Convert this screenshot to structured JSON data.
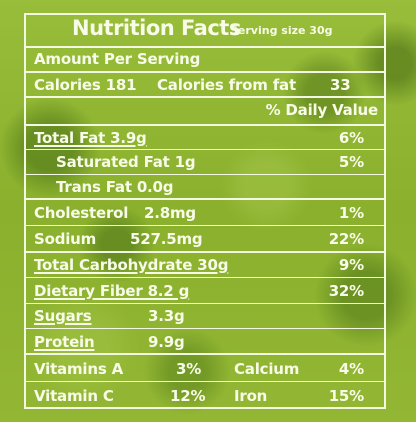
{
  "label": {
    "title": "Nutrition Facts",
    "serving": "Serving size 30g",
    "amount_per_serving": "Amount Per Serving",
    "calories_label": "Calories 181",
    "calories_from_fat_label": "Calories from fat",
    "calories_from_fat_value": "33",
    "daily_value_header": "% Daily Value"
  },
  "nutrients": {
    "total_fat": {
      "label": "Total Fat 3.9g",
      "dv": "6%"
    },
    "saturated_fat": {
      "label": "Saturated Fat 1g",
      "dv": "5%"
    },
    "trans_fat": {
      "label": "Trans Fat 0.0g"
    },
    "cholesterol": {
      "label": "Cholesterol",
      "amount": "2.8mg",
      "dv": "1%"
    },
    "sodium": {
      "label": "Sodium",
      "amount": "527.5mg",
      "dv": "22%"
    },
    "total_carbohydrate": {
      "label": "Total Carbohydrate 30g",
      "dv": "9%"
    },
    "dietary_fiber": {
      "label": "Dietary Fiber 8.2 g",
      "dv": "32%"
    },
    "sugars": {
      "label": "Sugars",
      "amount": "3.3g"
    },
    "protein": {
      "label": "Protein",
      "amount": "9.9g"
    }
  },
  "vitamins": {
    "vitamin_a": {
      "label": "Vitamins A",
      "dv": "3%"
    },
    "calcium": {
      "label": "Calcium",
      "dv": "4%"
    },
    "vitamin_c": {
      "label": "Vitamin C",
      "dv": "12%"
    },
    "iron": {
      "label": "Iron",
      "dv": "15%"
    }
  }
}
